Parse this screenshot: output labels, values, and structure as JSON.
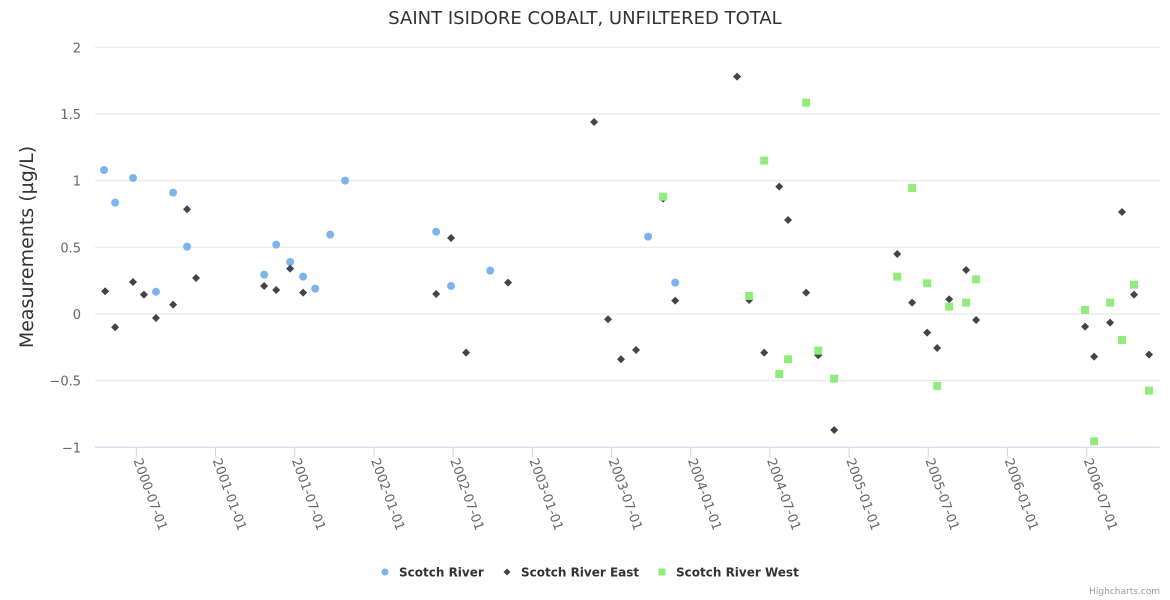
{
  "chart_data": {
    "type": "scatter",
    "title": "SAINT ISIDORE COBALT, UNFILTERED TOTAL",
    "xlabel": "",
    "ylabel": "Measurements (µg/L)",
    "x_units": "decimal year",
    "xlim": [
      2000.239,
      2006.963
    ],
    "ylim": [
      -1,
      2
    ],
    "yticks": [
      -1,
      -0.5,
      0,
      0.5,
      1,
      1.5,
      2
    ],
    "ytick_labels": [
      "−1",
      "−0.5",
      "0",
      "0.5",
      "1",
      "1.5",
      "2"
    ],
    "xticks": [
      2000.5,
      2001.0,
      2001.5,
      2002.0,
      2002.5,
      2003.0,
      2003.5,
      2004.0,
      2004.5,
      2005.0,
      2005.5,
      2006.0,
      2006.5
    ],
    "xtick_labels": [
      "2000-07-01",
      "2001-01-01",
      "2001-07-01",
      "2002-01-01",
      "2002-07-01",
      "2003-01-01",
      "2003-07-01",
      "2004-01-01",
      "2004-07-01",
      "2005-01-01",
      "2005-07-01",
      "2006-01-01",
      "2006-07-01"
    ],
    "grid": "horizontal",
    "legend_position": "bottom-center",
    "credit": "Highcharts.com",
    "series": [
      {
        "name": "Scotch River",
        "color": "#7cb5ec",
        "marker": "circle",
        "x": [
          2000.296,
          2000.366,
          2000.479,
          2000.624,
          2000.732,
          2000.82,
          2001.307,
          2001.383,
          2001.471,
          2001.553,
          2001.629,
          2001.724,
          2001.818,
          2002.393,
          2002.487,
          2002.734,
          2003.731,
          2003.902
        ],
        "y": [
          1.08,
          0.835,
          1.02,
          0.167,
          0.91,
          0.505,
          0.295,
          0.52,
          0.39,
          0.28,
          0.19,
          0.595,
          1.0,
          0.617,
          0.21,
          0.325,
          0.58,
          0.235
        ]
      },
      {
        "name": "Scotch River East",
        "color": "#434348",
        "marker": "diamond",
        "x": [
          2000.303,
          2000.366,
          2000.479,
          2000.548,
          2000.624,
          2000.732,
          2000.82,
          2000.877,
          2001.307,
          2001.383,
          2001.471,
          2001.553,
          2002.393,
          2002.487,
          2002.582,
          2002.847,
          2003.39,
          2003.478,
          2003.56,
          2003.655,
          2003.826,
          2003.902,
          2004.293,
          2004.369,
          2004.464,
          2004.559,
          2004.615,
          2004.729,
          2004.805,
          2004.906,
          2005.304,
          2005.398,
          2005.493,
          2005.556,
          2005.632,
          2005.739,
          2005.802,
          2006.49,
          2006.547,
          2006.648,
          2006.723,
          2006.799,
          2006.894
        ],
        "y": [
          0.17,
          -0.1,
          0.24,
          0.145,
          -0.03,
          0.07,
          0.785,
          0.27,
          0.21,
          0.18,
          0.34,
          0.16,
          0.15,
          0.57,
          -0.29,
          0.235,
          1.44,
          -0.04,
          -0.34,
          -0.27,
          0.865,
          0.1,
          1.78,
          0.105,
          -0.29,
          0.955,
          0.705,
          0.16,
          -0.31,
          -0.87,
          0.45,
          0.085,
          -0.14,
          -0.255,
          0.11,
          0.33,
          -0.045,
          -0.095,
          -0.32,
          -0.065,
          0.765,
          0.145,
          -0.305
        ]
      },
      {
        "name": "Scotch River West",
        "color": "#90ed7d",
        "marker": "square",
        "x": [
          2003.826,
          2004.369,
          2004.464,
          2004.559,
          2004.615,
          2004.729,
          2004.805,
          2004.906,
          2005.304,
          2005.398,
          2005.493,
          2005.556,
          2005.632,
          2005.739,
          2005.802,
          2006.49,
          2006.547,
          2006.648,
          2006.723,
          2006.799,
          2006.894
        ],
        "y": [
          0.88,
          0.135,
          1.15,
          -0.45,
          -0.34,
          1.585,
          -0.275,
          -0.485,
          0.28,
          0.945,
          0.23,
          -0.54,
          0.055,
          0.085,
          0.26,
          0.03,
          -0.955,
          0.085,
          -0.195,
          0.22,
          -0.575
        ]
      }
    ]
  }
}
